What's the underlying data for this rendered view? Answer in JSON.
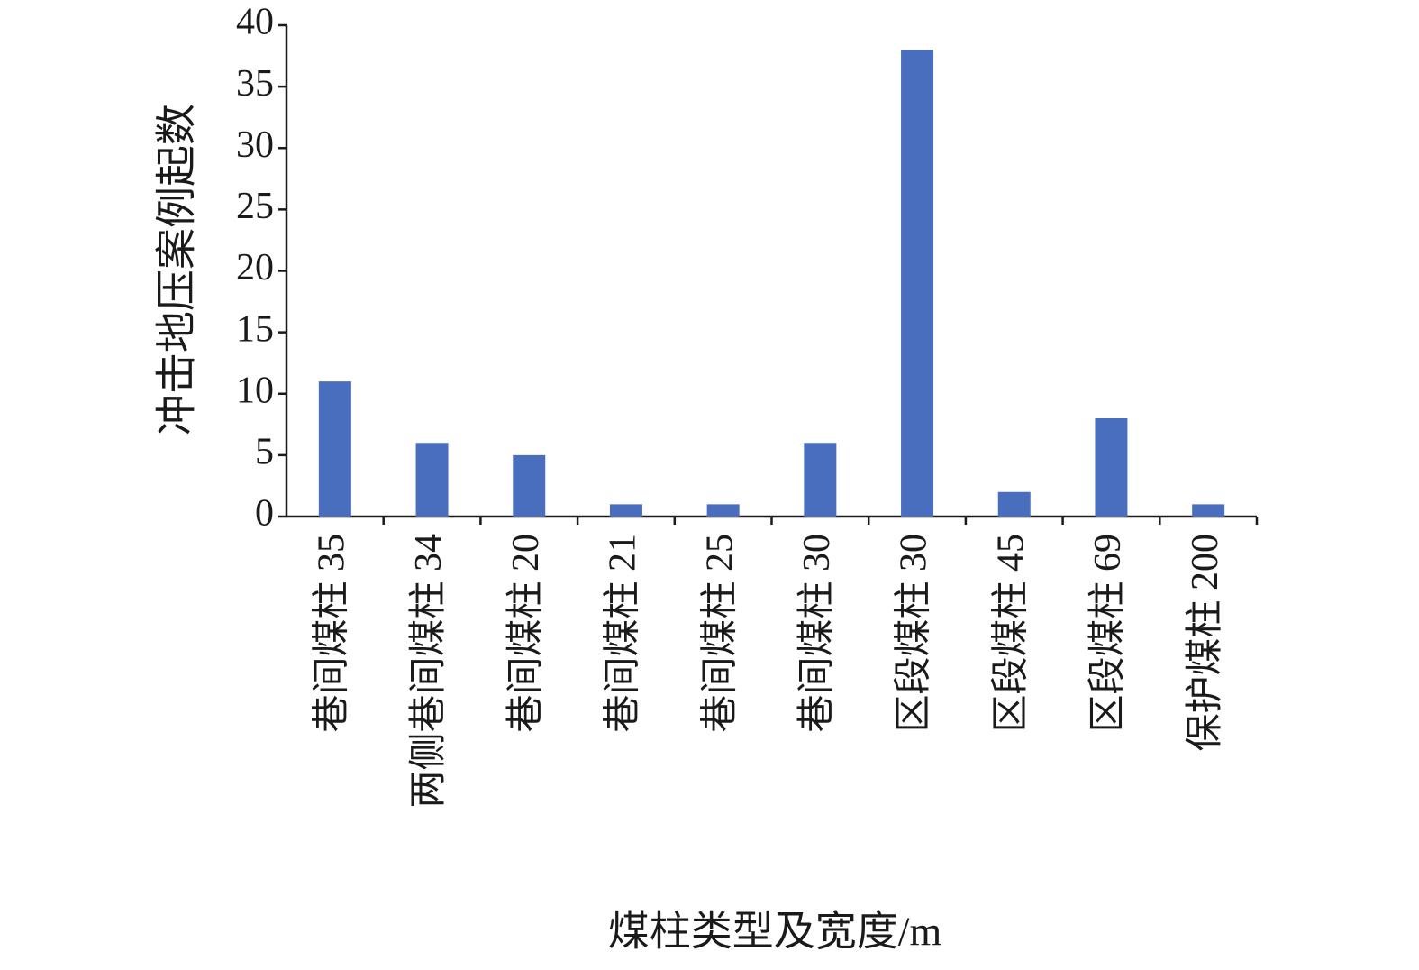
{
  "chart_data": {
    "type": "bar",
    "x_label": "煤柱类型及宽度/m",
    "y_label": "冲击地压案例起数",
    "categories": [
      "巷间煤柱 35",
      "两侧巷间煤柱 34",
      "巷间煤柱 20",
      "巷间煤柱 21",
      "巷间煤柱 25",
      "巷间煤柱 30",
      "区段煤柱 30",
      "区段煤柱 45",
      "区段煤柱 69",
      "保护煤柱 200"
    ],
    "values": [
      11,
      6,
      5,
      1,
      1,
      6,
      38,
      2,
      8,
      1
    ],
    "color": "#4a6ebe",
    "ylim": [
      0,
      40
    ],
    "yticks": [
      0,
      5,
      10,
      15,
      20,
      25,
      30,
      35,
      40
    ],
    "grid": false
  }
}
